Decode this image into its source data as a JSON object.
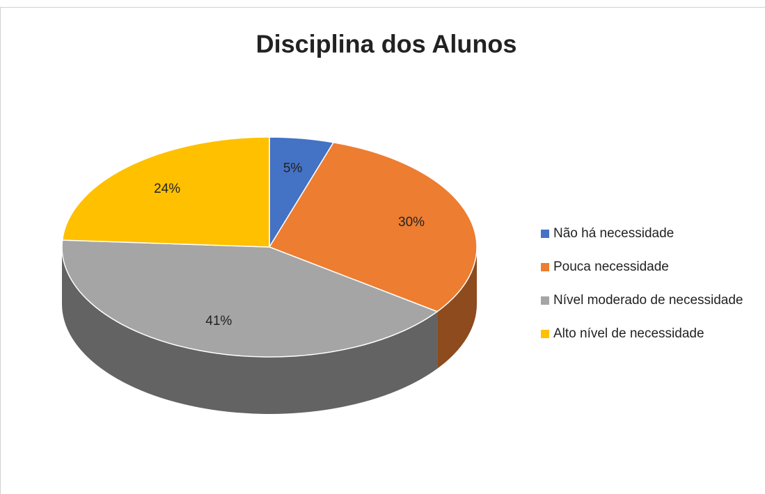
{
  "chart_data": {
    "type": "pie3d",
    "title": "Disciplina dos Alunos",
    "categories": [
      "Não há necessidade",
      "Pouca necessidade",
      "Nível moderado de necessidade",
      "Alto nível de necessidade"
    ],
    "values": [
      5,
      30,
      41,
      24
    ],
    "value_labels": [
      "5%",
      "30%",
      "41%",
      "24%"
    ],
    "colors": [
      "#4472c4",
      "#ed7d31",
      "#a5a5a5",
      "#ffc000"
    ],
    "legend": "right"
  }
}
